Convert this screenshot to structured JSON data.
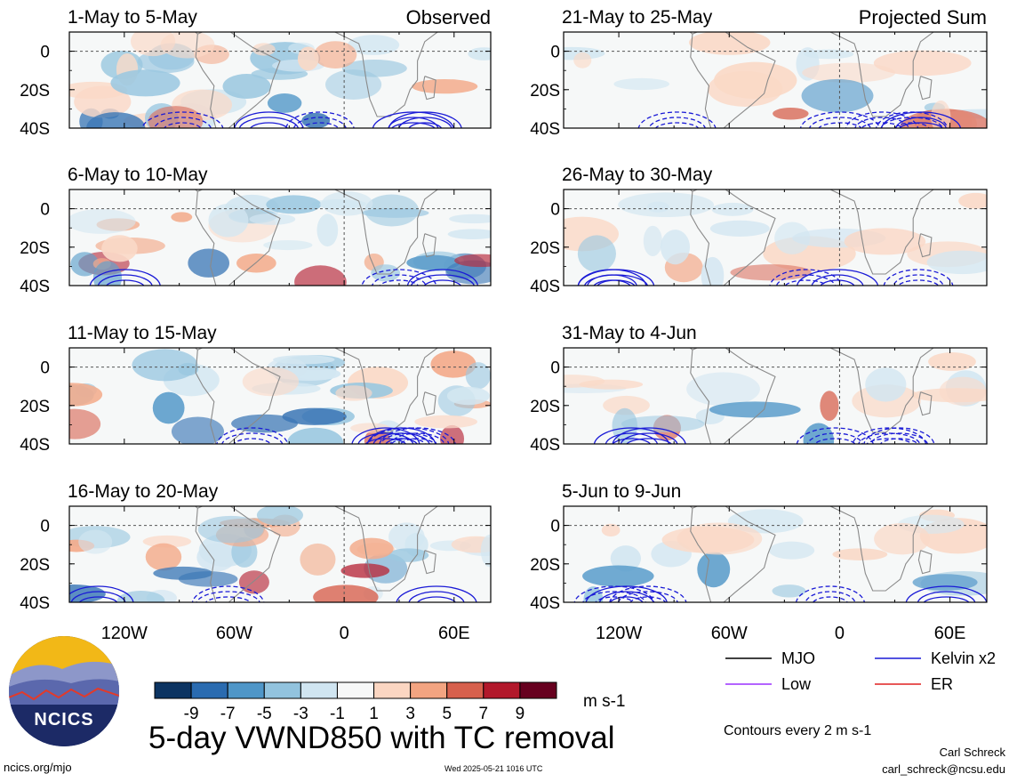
{
  "chart_data": {
    "type": "heatmap",
    "title": "5-day VWND850 with TC removal",
    "units": "m s-1",
    "column_labels": [
      "Observed",
      "Projected Sum"
    ],
    "x_ticks": [
      "120W",
      "60W",
      "0",
      "60E"
    ],
    "x_tick_values": [
      -120,
      -60,
      0,
      60
    ],
    "x_range": [
      -150,
      80
    ],
    "y_ticks": [
      "0",
      "20S",
      "40S"
    ],
    "y_tick_values": [
      0,
      -20,
      -40
    ],
    "y_range": [
      -40,
      10
    ],
    "colorbar": {
      "levels": [
        "-9",
        "-7",
        "-5",
        "-3",
        "-1",
        "1",
        "3",
        "5",
        "7",
        "9"
      ],
      "colors": [
        "#0c3462",
        "#2a6bb0",
        "#4f96c8",
        "#92c3de",
        "#d0e5f1",
        "#f7f8f8",
        "#fbd6c2",
        "#f3a481",
        "#d7604d",
        "#b2182b",
        "#67001f"
      ]
    },
    "panels": [
      {
        "period": "1-May to 5-May",
        "column": "Observed"
      },
      {
        "period": "6-May to 10-May",
        "column": "Observed"
      },
      {
        "period": "11-May to 15-May",
        "column": "Observed"
      },
      {
        "period": "16-May to 20-May",
        "column": "Observed"
      },
      {
        "period": "21-May to 25-May",
        "column": "Projected Sum"
      },
      {
        "period": "26-May to 30-May",
        "column": "Projected Sum"
      },
      {
        "period": "31-May to 4-Jun",
        "column": "Projected Sum"
      },
      {
        "period": "5-Jun to 9-Jun",
        "column": "Projected Sum"
      }
    ],
    "legend": {
      "title": "",
      "entries": [
        {
          "label": "MJO",
          "color": "#000000"
        },
        {
          "label": "Kelvin x2",
          "color": "#1a1ad6"
        },
        {
          "label": "Low",
          "color": "#9b30ff"
        },
        {
          "label": "ER",
          "color": "#e02020"
        }
      ],
      "note": "Contours every 2 m s-1"
    }
  },
  "logo": {
    "text": "NCICS"
  },
  "footer": {
    "url": "ncics.org/mjo",
    "timestamp": "Wed 2025-05-21 1016 UTC",
    "author": "Carl Schreck",
    "email": "carl_schreck@ncsu.edu"
  }
}
